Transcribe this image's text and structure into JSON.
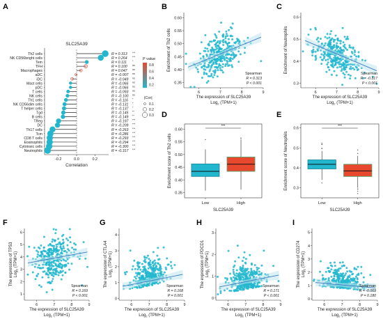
{
  "colors": {
    "teal": "#22b7cf",
    "red": "#e8492e",
    "box_green": "#5a9e6a",
    "fit_line": "#3d7bbf",
    "band": "#bfe6ef",
    "dot_dark": "#1f6fb5"
  },
  "chart_data": [
    {
      "panel": "A",
      "type": "lollipop",
      "title": "SLC25A39",
      "xlabel": "Correlation",
      "xticks": [
        "-0.2",
        "0.0",
        "0.2"
      ],
      "xlim": [
        -0.35,
        0.35
      ],
      "rows": [
        {
          "cell": "Th2 cells",
          "r": 0.313,
          "label": "R = 0.313",
          "sig": "***",
          "color": "teal"
        },
        {
          "cell": "NK CD56bright cells",
          "r": 0.264,
          "label": "R = 0.264",
          "sig": "***",
          "color": "teal"
        },
        {
          "cell": "Tem",
          "r": 0.111,
          "label": "R = 0.111",
          "sig": "*",
          "color": "teal"
        },
        {
          "cell": "TFH",
          "r": 0.1,
          "label": "R = 0.100",
          "sig": "ns",
          "color": "red"
        },
        {
          "cell": "Macrophages",
          "r": 0.047,
          "label": "R = 0.047",
          "sig": "ns",
          "color": "red"
        },
        {
          "cell": "aDC",
          "r": -0.007,
          "label": "R = -0.007",
          "sig": "ns",
          "color": "red"
        },
        {
          "cell": "iDC",
          "r": -0.049,
          "label": "R = -0.049",
          "sig": "ns",
          "color": "red"
        },
        {
          "cell": "Mast cells",
          "r": -0.066,
          "label": "R = -0.066",
          "sig": "ns",
          "color": "teal"
        },
        {
          "cell": "pDC",
          "r": -0.066,
          "label": "R = -0.066",
          "sig": "ns",
          "color": "teal"
        },
        {
          "cell": "T cells",
          "r": -0.093,
          "label": "R = -0.093",
          "sig": "ns",
          "color": "teal"
        },
        {
          "cell": "NK cells",
          "r": -0.1,
          "label": "R = -0.100",
          "sig": "ns",
          "color": "teal"
        },
        {
          "cell": "Th1 cells",
          "r": -0.116,
          "label": "R = -0.116",
          "sig": "*",
          "color": "teal"
        },
        {
          "cell": "NK CD56dim cells",
          "r": -0.131,
          "label": "R = -0.131",
          "sig": "*",
          "color": "teal"
        },
        {
          "cell": "T helper cells",
          "r": -0.137,
          "label": "R = -0.137",
          "sig": "*",
          "color": "teal"
        },
        {
          "cell": "Tgd",
          "r": -0.145,
          "label": "R = -0.145",
          "sig": "**",
          "color": "teal"
        },
        {
          "cell": "B cells",
          "r": -0.149,
          "label": "R = -0.149",
          "sig": "**",
          "color": "teal"
        },
        {
          "cell": "TReg",
          "r": -0.197,
          "label": "R = -0.197",
          "sig": "***",
          "color": "teal"
        },
        {
          "cell": "DC",
          "r": -0.209,
          "label": "R = -0.209",
          "sig": "***",
          "color": "teal"
        },
        {
          "cell": "Th17 cells",
          "r": -0.263,
          "label": "R = -0.263",
          "sig": "***",
          "color": "teal"
        },
        {
          "cell": "Tcm",
          "r": -0.286,
          "label": "R = -0.286",
          "sig": "***",
          "color": "teal"
        },
        {
          "cell": "CD8 T cells",
          "r": -0.293,
          "label": "R = -0.293",
          "sig": "***",
          "color": "teal"
        },
        {
          "cell": "Eosinophils",
          "r": -0.294,
          "label": "R = -0.294",
          "sig": "***",
          "color": "teal"
        },
        {
          "cell": "Cytotoxic cells",
          "r": -0.3,
          "label": "R = -0.300",
          "sig": "***",
          "color": "teal"
        },
        {
          "cell": "Neutrophils",
          "r": -0.317,
          "label": "R = -0.317",
          "sig": "***",
          "color": "teal"
        }
      ],
      "legend": {
        "pvalue_title": "P value",
        "pvalue_ticks": [
          "0.8",
          "0.6",
          "0.4",
          "0.2"
        ],
        "cor_title": "|Cor|",
        "cor_values": [
          "0.1",
          "0.2",
          "0.3"
        ]
      }
    },
    {
      "panel": "B",
      "type": "scatter",
      "xlabel": "The expression of SLC25A39",
      "xlabel2": "Log",
      "xlabel2_sub": "2",
      "xlabel2_tail": " (TPM+1)",
      "ylabel": "Enrichment of Th2 cells",
      "xlim": [
        5.3,
        9
      ],
      "ylim": [
        0.33,
        0.62
      ],
      "xticks": [
        "6",
        "7",
        "8",
        "9"
      ],
      "yticks": [
        "0.35",
        "0.40",
        "0.45",
        "0.50",
        "0.55",
        "0.60"
      ],
      "fit": {
        "slope": 0.034
      },
      "stats": {
        "method": "Spearman",
        "r": "R = 0.313",
        "p": "P < 0.001"
      }
    },
    {
      "panel": "C",
      "type": "scatter",
      "xlabel": "The expression of SLC25A39",
      "xlabel2": "Log",
      "xlabel2_sub": "2",
      "xlabel2_tail": " (TPM+1)",
      "ylabel": "Enrichment of Neutrophils",
      "xlim": [
        5.3,
        9
      ],
      "ylim": [
        0.28,
        0.62
      ],
      "xticks": [
        "6",
        "7",
        "8",
        "9"
      ],
      "yticks": [
        "0.3",
        "0.4",
        "0.5",
        "0.6"
      ],
      "fit": {
        "slope": -0.04
      },
      "stats": {
        "method": "Spearman",
        "r": "R = -0.317",
        "p": "P < 0.001"
      }
    },
    {
      "panel": "D",
      "type": "box",
      "ylabel": "Enrichment score of Th2 cells",
      "xlabel": "SLC25A39",
      "categories": [
        "Low",
        "High"
      ],
      "ylim": [
        0.33,
        0.62
      ],
      "yticks": [
        "0.35",
        "0.40",
        "0.45",
        "0.50",
        "0.55",
        "0.60"
      ],
      "sig": "***",
      "boxes": [
        {
          "q1": 0.414,
          "median": 0.434,
          "q3": 0.463,
          "lo": 0.358,
          "hi": 0.52,
          "fill": "teal"
        },
        {
          "q1": 0.434,
          "median": 0.462,
          "q3": 0.49,
          "lo": 0.362,
          "hi": 0.56,
          "fill": "red"
        }
      ]
    },
    {
      "panel": "E",
      "type": "box",
      "ylabel": "Enrichment score of Neutrophils",
      "xlabel": "SLC25A39",
      "categories": [
        "Low",
        "High"
      ],
      "ylim": [
        0.25,
        0.62
      ],
      "yticks": [
        "0.3",
        "0.4",
        "0.5",
        "0.6"
      ],
      "sig": "***",
      "boxes": [
        {
          "q1": 0.395,
          "median": 0.418,
          "q3": 0.44,
          "lo": 0.34,
          "hi": 0.485,
          "fill": "teal"
        },
        {
          "q1": 0.357,
          "median": 0.385,
          "q3": 0.418,
          "lo": 0.3,
          "hi": 0.46,
          "fill": "red"
        }
      ]
    },
    {
      "panel": "F",
      "type": "scatter",
      "xlabel": "The expression of SLC25A39",
      "xlabel2": "Log",
      "xlabel2_sub": "2",
      "xlabel2_tail": " (TPM+1)",
      "ylabel": "The expression of TP53",
      "ylabel2": "Log",
      "ylabel2_sub": "2",
      "ylabel2_tail": " (TPM+1)",
      "xlim": [
        5.3,
        9
      ],
      "ylim": [
        0.5,
        6.3
      ],
      "xticks": [
        "6",
        "7",
        "8",
        "9"
      ],
      "yticks": [
        "1",
        "2",
        "3",
        "4",
        "5",
        "6"
      ],
      "fit": {
        "slope": 0.26
      },
      "stats": {
        "method": "Spearman",
        "r": "R = 0.169",
        "p": "P < 0.001"
      }
    },
    {
      "panel": "G",
      "type": "scatter",
      "xlabel": "The expression of SLC25A39",
      "xlabel2": "Log",
      "xlabel2_sub": "2",
      "xlabel2_tail": " (TPM+1)",
      "ylabel": "The expression of CTLA4",
      "ylabel2": "Log",
      "ylabel2_sub": "2",
      "ylabel2_tail": " (TPM+1)",
      "xlim": [
        5.3,
        9
      ],
      "ylim": [
        -0.1,
        4.4
      ],
      "xticks": [
        "6",
        "7",
        "8",
        "9"
      ],
      "yticks": [
        "0",
        "1",
        "2",
        "3",
        "4"
      ],
      "fit": {
        "slope": 0.22
      },
      "stats": {
        "method": "Spearman",
        "r": "R = 0.168",
        "p": "P = 0.001"
      }
    },
    {
      "panel": "H",
      "type": "scatter",
      "xlabel": "The expression of SLC25A39",
      "xlabel2": "Log",
      "xlabel2_sub": "2",
      "xlabel2_tail": " (TPM+1)",
      "ylabel": "The expression of PDCD1",
      "ylabel2": "Log",
      "ylabel2_sub": "2",
      "ylabel2_tail": " (TPM+1)",
      "xlim": [
        5.3,
        9
      ],
      "ylim": [
        -0.1,
        3.2
      ],
      "xticks": [
        "6",
        "7",
        "8",
        "9"
      ],
      "yticks": [
        "0",
        "1",
        "2",
        "3"
      ],
      "fit": {
        "slope": 0.16
      },
      "stats": {
        "method": "Spearman",
        "r": "R = 0.171",
        "p": "P < 0.001"
      }
    },
    {
      "panel": "I",
      "type": "scatter",
      "xlabel": "The expression of SLC25A39",
      "xlabel2": "Log",
      "xlabel2_sub": "2",
      "xlabel2_tail": " (TPM+1)",
      "ylabel": "The expression of CD274",
      "ylabel2": "Log",
      "ylabel2_sub": "2",
      "ylabel2_tail": " (TPM+1)",
      "xlim": [
        5.3,
        9
      ],
      "ylim": [
        -0.1,
        5.3
      ],
      "xticks": [
        "6",
        "7",
        "8",
        "9"
      ],
      "yticks": [
        "0",
        "1",
        "2",
        "3",
        "4",
        "5"
      ],
      "fit": {
        "slope": -0.12
      },
      "stats": {
        "method": "Spearman",
        "r": "R = -0.069",
        "p": "P = 0.180"
      }
    }
  ]
}
